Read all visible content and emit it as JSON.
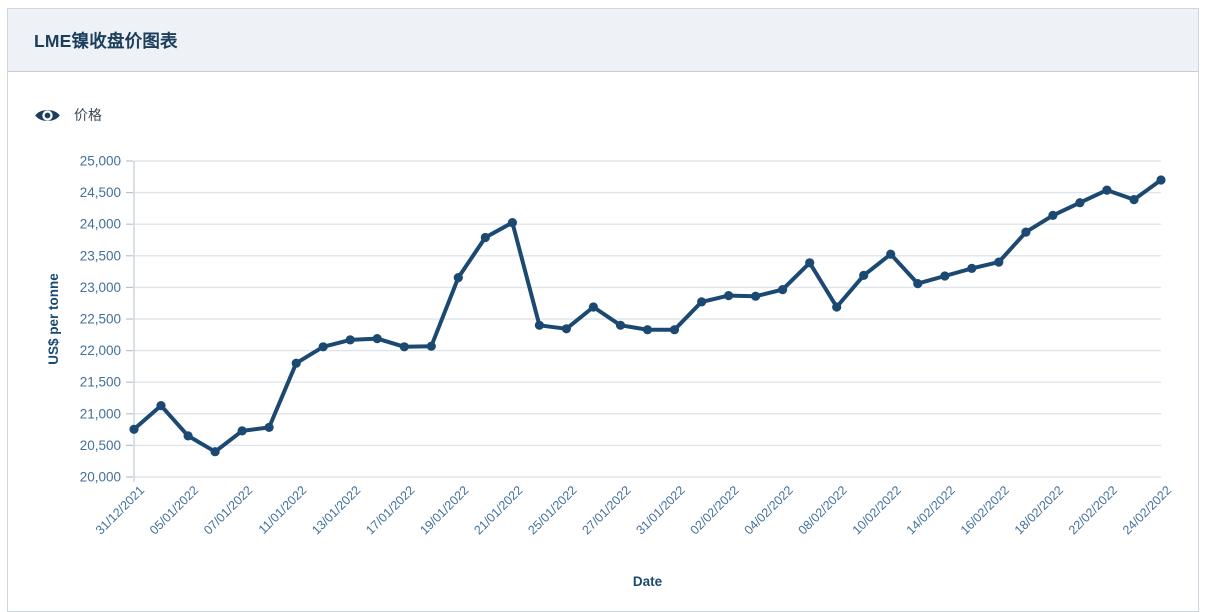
{
  "header": {
    "title": "LME镍收盘价图表"
  },
  "legend": {
    "label": "价格",
    "icon": "eye-icon"
  },
  "colors": {
    "line": "#1b4971",
    "marker": "#1b4971",
    "axis_title": "#1a4971",
    "tick_label": "#41719c",
    "grid": "#dfe5ec",
    "axis_line": "#c9d3dc",
    "tick_dash": "#b9c3cc",
    "header_bg": "#eef1f5",
    "panel_border": "#ccd7e2",
    "title_text": "#1a3e5c"
  },
  "chart_data": {
    "type": "line",
    "title": "LME镍收盘价图表",
    "xlabel": "Date",
    "ylabel": "US$ per tonne",
    "ylim": [
      20000,
      25000
    ],
    "y_tick_step": 500,
    "grid": true,
    "legend_position": "top-left",
    "x_tick_every": 2,
    "x": [
      "31/12/2021",
      "04/01/2022",
      "05/01/2022",
      "06/01/2022",
      "07/01/2022",
      "10/01/2022",
      "11/01/2022",
      "12/01/2022",
      "13/01/2022",
      "14/01/2022",
      "17/01/2022",
      "18/01/2022",
      "19/01/2022",
      "20/01/2022",
      "21/01/2022",
      "24/01/2022",
      "25/01/2022",
      "26/01/2022",
      "27/01/2022",
      "28/01/2022",
      "31/01/2022",
      "01/02/2022",
      "02/02/2022",
      "03/02/2022",
      "04/02/2022",
      "07/02/2022",
      "08/02/2022",
      "09/02/2022",
      "10/02/2022",
      "11/02/2022",
      "14/02/2022",
      "15/02/2022",
      "16/02/2022",
      "17/02/2022",
      "18/02/2022",
      "21/02/2022",
      "22/02/2022",
      "23/02/2022",
      "24/02/2022"
    ],
    "visible_x_tick_labels": [
      "31/12/2021",
      "05/01/2022",
      "07/01/2022",
      "11/01/2022",
      "13/01/2022",
      "17/01/2022",
      "19/01/2022",
      "21/01/2022",
      "25/01/2022",
      "27/01/2022",
      "31/01/2022",
      "02/02/2022",
      "04/02/2022",
      "08/02/2022",
      "10/02/2022",
      "14/02/2022",
      "16/02/2022",
      "18/02/2022",
      "22/02/2022",
      "24/02/2022"
    ],
    "y_tick_labels": [
      "20,000",
      "20,500",
      "21,000",
      "21,500",
      "22,000",
      "22,500",
      "23,000",
      "23,500",
      "24,000",
      "24,500",
      "25,000"
    ],
    "series": [
      {
        "name": "价格",
        "color": "#1b4971",
        "values": [
          20755,
          21130,
          20650,
          20400,
          20730,
          20785,
          21800,
          22060,
          22170,
          22190,
          22060,
          22070,
          23155,
          23790,
          24025,
          22400,
          22345,
          22690,
          22400,
          22330,
          22330,
          22770,
          22870,
          22860,
          22965,
          23390,
          22690,
          23190,
          23525,
          23060,
          23180,
          23300,
          23400,
          23875,
          24140,
          24340,
          24540,
          24390,
          24700
        ]
      }
    ]
  }
}
